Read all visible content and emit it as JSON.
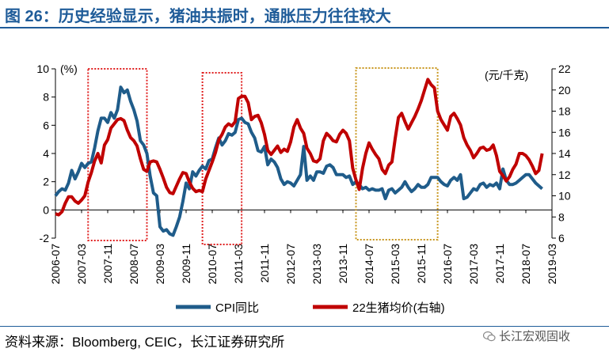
{
  "title": "图 26：历史经验显示，猪油共振时，通胀压力往往较大",
  "source": "资料来源：Bloomberg, CEIC，长江证券研究所",
  "watermark": "长江宏观固收",
  "chart_data": {
    "type": "line",
    "title": "",
    "left_axis": {
      "label": "(%)",
      "min": -2,
      "max": 10,
      "ticks": [
        -2,
        0,
        2,
        4,
        6,
        8,
        10
      ]
    },
    "right_axis": {
      "label": "(元/千克)",
      "min": 6,
      "max": 22,
      "ticks": [
        6,
        8,
        10,
        12,
        14,
        16,
        18,
        20,
        22
      ]
    },
    "x_tick_labels": [
      "2006-07",
      "2007-03",
      "2007-11",
      "2008-07",
      "2009-03",
      "2009-11",
      "2010-07",
      "2011-03",
      "2011-11",
      "2012-07",
      "2013-03",
      "2013-11",
      "2014-07",
      "2015-03",
      "2015-11",
      "2016-07",
      "2017-03",
      "2017-11",
      "2018-07",
      "2019-03"
    ],
    "x_start_label": "2006-07",
    "x_end_label": "2019-03",
    "colors": {
      "cpi": "#1f5c8a",
      "pork": "#c00000",
      "box_red": "#e02020",
      "box_gold": "#c8961e",
      "title": "#1f5c99"
    },
    "series": [
      {
        "name": "CPI同比",
        "axis": "left",
        "points": [
          [
            0,
            1.0
          ],
          [
            1,
            1.3
          ],
          [
            2,
            1.5
          ],
          [
            3,
            1.4
          ],
          [
            4,
            1.9
          ],
          [
            5,
            2.8
          ],
          [
            6,
            2.2
          ],
          [
            7,
            2.7
          ],
          [
            8,
            3.3
          ],
          [
            9,
            3.0
          ],
          [
            10,
            3.3
          ],
          [
            11,
            3.4
          ],
          [
            12,
            4.4
          ],
          [
            13,
            5.6
          ],
          [
            14,
            6.5
          ],
          [
            15,
            6.5
          ],
          [
            16,
            6.2
          ],
          [
            17,
            6.9
          ],
          [
            18,
            6.5
          ],
          [
            19,
            7.1
          ],
          [
            20,
            8.7
          ],
          [
            21,
            8.3
          ],
          [
            22,
            8.5
          ],
          [
            23,
            7.7
          ],
          [
            24,
            7.1
          ],
          [
            25,
            6.3
          ],
          [
            26,
            4.9
          ],
          [
            27,
            4.6
          ],
          [
            28,
            4.0
          ],
          [
            29,
            2.4
          ],
          [
            30,
            1.2
          ],
          [
            31,
            1.0
          ],
          [
            32,
            -1.2
          ],
          [
            33,
            -1.5
          ],
          [
            34,
            -1.4
          ],
          [
            35,
            -1.7
          ],
          [
            36,
            -1.8
          ],
          [
            37,
            -1.2
          ],
          [
            38,
            -0.5
          ],
          [
            39,
            0.6
          ],
          [
            40,
            1.9
          ],
          [
            41,
            1.5
          ],
          [
            42,
            2.7
          ],
          [
            43,
            2.4
          ],
          [
            44,
            2.8
          ],
          [
            45,
            3.1
          ],
          [
            46,
            2.9
          ],
          [
            47,
            3.5
          ],
          [
            48,
            3.6
          ],
          [
            49,
            4.4
          ],
          [
            50,
            5.1
          ],
          [
            51,
            4.6
          ],
          [
            52,
            4.9
          ],
          [
            53,
            5.4
          ],
          [
            54,
            5.3
          ],
          [
            55,
            5.5
          ],
          [
            56,
            6.4
          ],
          [
            57,
            6.5
          ],
          [
            58,
            6.2
          ],
          [
            59,
            6.1
          ],
          [
            60,
            5.5
          ],
          [
            61,
            5.1
          ],
          [
            62,
            4.2
          ],
          [
            63,
            4.1
          ],
          [
            64,
            4.5
          ],
          [
            65,
            3.2
          ],
          [
            66,
            3.6
          ],
          [
            67,
            3.4
          ],
          [
            68,
            3.0
          ],
          [
            69,
            2.2
          ],
          [
            70,
            1.8
          ],
          [
            71,
            2.0
          ],
          [
            72,
            1.9
          ],
          [
            73,
            1.7
          ],
          [
            74,
            2.1
          ],
          [
            75,
            2.5
          ],
          [
            76,
            4.5
          ],
          [
            77,
            2.1
          ],
          [
            78,
            2.4
          ],
          [
            79,
            2.1
          ],
          [
            80,
            2.7
          ],
          [
            81,
            2.7
          ],
          [
            82,
            2.6
          ],
          [
            83,
            3.1
          ],
          [
            84,
            3.2
          ],
          [
            85,
            3.0
          ],
          [
            86,
            2.5
          ],
          [
            87,
            2.5
          ],
          [
            88,
            2.5
          ],
          [
            89,
            2.3
          ],
          [
            90,
            2.4
          ],
          [
            91,
            1.8
          ],
          [
            92,
            2.0
          ],
          [
            93,
            1.8
          ],
          [
            94,
            1.5
          ],
          [
            95,
            1.6
          ],
          [
            96,
            1.4
          ],
          [
            97,
            1.5
          ],
          [
            98,
            1.4
          ],
          [
            99,
            1.4
          ],
          [
            100,
            1.5
          ],
          [
            101,
            0.8
          ],
          [
            102,
            1.4
          ],
          [
            103,
            1.5
          ],
          [
            104,
            1.2
          ],
          [
            105,
            1.4
          ],
          [
            106,
            1.6
          ],
          [
            107,
            2.0
          ],
          [
            108,
            1.6
          ],
          [
            109,
            1.3
          ],
          [
            110,
            1.5
          ],
          [
            111,
            1.8
          ],
          [
            112,
            1.6
          ],
          [
            113,
            1.6
          ],
          [
            114,
            1.8
          ],
          [
            115,
            2.3
          ],
          [
            116,
            2.3
          ],
          [
            117,
            2.3
          ],
          [
            118,
            2.0
          ],
          [
            119,
            1.8
          ],
          [
            120,
            1.7
          ],
          [
            121,
            2.1
          ],
          [
            122,
            2.3
          ],
          [
            123,
            2.1
          ],
          [
            124,
            2.5
          ],
          [
            125,
            0.8
          ],
          [
            126,
            0.9
          ],
          [
            127,
            1.2
          ],
          [
            128,
            1.5
          ],
          [
            129,
            1.4
          ],
          [
            130,
            1.8
          ],
          [
            131,
            1.9
          ],
          [
            132,
            1.6
          ],
          [
            133,
            1.8
          ],
          [
            134,
            1.7
          ],
          [
            135,
            1.9
          ],
          [
            136,
            1.5
          ],
          [
            137,
            2.9
          ],
          [
            138,
            2.1
          ],
          [
            139,
            1.8
          ],
          [
            140,
            1.8
          ],
          [
            141,
            1.9
          ],
          [
            142,
            2.1
          ],
          [
            143,
            2.3
          ],
          [
            144,
            2.5
          ],
          [
            145,
            2.5
          ],
          [
            146,
            2.2
          ],
          [
            147,
            1.9
          ],
          [
            148,
            1.7
          ],
          [
            149,
            1.5
          ]
        ]
      },
      {
        "name": "22生猪均价(右轴)",
        "axis": "right",
        "points": [
          [
            0,
            8.3
          ],
          [
            1,
            8.2
          ],
          [
            2,
            8.5
          ],
          [
            3,
            9.3
          ],
          [
            4,
            9.9
          ],
          [
            5,
            9.9
          ],
          [
            6,
            9.5
          ],
          [
            7,
            9.3
          ],
          [
            8,
            9.6
          ],
          [
            9,
            10.0
          ],
          [
            10,
            11.3
          ],
          [
            11,
            12.2
          ],
          [
            12,
            13.3
          ],
          [
            13,
            14.0
          ],
          [
            14,
            13.1
          ],
          [
            15,
            14.8
          ],
          [
            16,
            15.3
          ],
          [
            17,
            16.4
          ],
          [
            18,
            16.8
          ],
          [
            19,
            17.2
          ],
          [
            20,
            17.3
          ],
          [
            21,
            17.1
          ],
          [
            22,
            16.2
          ],
          [
            23,
            15.5
          ],
          [
            24,
            15.2
          ],
          [
            25,
            14.7
          ],
          [
            26,
            13.5
          ],
          [
            27,
            12.5
          ],
          [
            28,
            12.3
          ],
          [
            29,
            13.2
          ],
          [
            30,
            13.3
          ],
          [
            31,
            13.2
          ],
          [
            32,
            12.5
          ],
          [
            33,
            11.7
          ],
          [
            34,
            10.8
          ],
          [
            35,
            10.3
          ],
          [
            36,
            10.2
          ],
          [
            37,
            10.9
          ],
          [
            38,
            11.6
          ],
          [
            39,
            12.2
          ],
          [
            40,
            12.1
          ],
          [
            41,
            11.3
          ],
          [
            42,
            10.7
          ],
          [
            43,
            10.4
          ],
          [
            44,
            10.5
          ],
          [
            45,
            10.4
          ],
          [
            46,
            11.6
          ],
          [
            47,
            12.4
          ],
          [
            48,
            13.2
          ],
          [
            49,
            14.1
          ],
          [
            50,
            15.3
          ],
          [
            51,
            15.8
          ],
          [
            52,
            16.5
          ],
          [
            53,
            16.8
          ],
          [
            54,
            16.6
          ],
          [
            55,
            17.0
          ],
          [
            56,
            19.2
          ],
          [
            57,
            19.4
          ],
          [
            58,
            19.4
          ],
          [
            59,
            18.8
          ],
          [
            60,
            17.2
          ],
          [
            61,
            17.5
          ],
          [
            62,
            17.6
          ],
          [
            63,
            16.9
          ],
          [
            64,
            15.8
          ],
          [
            65,
            14.3
          ],
          [
            66,
            13.9
          ],
          [
            67,
            14.3
          ],
          [
            68,
            14.7
          ],
          [
            69,
            14.1
          ],
          [
            70,
            14.4
          ],
          [
            71,
            14.2
          ],
          [
            72,
            15.1
          ],
          [
            73,
            16.5
          ],
          [
            74,
            17.2
          ],
          [
            75,
            16.4
          ],
          [
            76,
            15.9
          ],
          [
            77,
            14.5
          ],
          [
            78,
            14.0
          ],
          [
            79,
            13.3
          ],
          [
            80,
            13.2
          ],
          [
            81,
            13.5
          ],
          [
            82,
            15.2
          ],
          [
            83,
            15.9
          ],
          [
            84,
            15.6
          ],
          [
            85,
            15.2
          ],
          [
            86,
            15.1
          ],
          [
            87,
            15.8
          ],
          [
            88,
            16.2
          ],
          [
            89,
            15.9
          ],
          [
            90,
            15.2
          ],
          [
            91,
            12.6
          ],
          [
            92,
            11.5
          ],
          [
            93,
            10.6
          ],
          [
            94,
            12.6
          ],
          [
            95,
            14.0
          ],
          [
            96,
            15.0
          ],
          [
            97,
            14.4
          ],
          [
            98,
            13.9
          ],
          [
            99,
            13.5
          ],
          [
            100,
            12.5
          ],
          [
            101,
            12.1
          ],
          [
            102,
            12.9
          ],
          [
            103,
            13.2
          ],
          [
            104,
            15.4
          ],
          [
            105,
            17.4
          ],
          [
            106,
            17.8
          ],
          [
            107,
            17.0
          ],
          [
            108,
            16.3
          ],
          [
            109,
            16.9
          ],
          [
            110,
            17.5
          ],
          [
            111,
            18.2
          ],
          [
            112,
            19.0
          ],
          [
            113,
            20.0
          ],
          [
            114,
            21.0
          ],
          [
            115,
            20.5
          ],
          [
            116,
            20.2
          ],
          [
            117,
            18.0
          ],
          [
            118,
            17.2
          ],
          [
            119,
            16.7
          ],
          [
            120,
            16.2
          ],
          [
            121,
            17.5
          ],
          [
            122,
            17.8
          ],
          [
            123,
            17.3
          ],
          [
            124,
            16.7
          ],
          [
            125,
            15.5
          ],
          [
            126,
            14.8
          ],
          [
            127,
            14.3
          ],
          [
            128,
            13.6
          ],
          [
            129,
            14.0
          ],
          [
            130,
            14.5
          ],
          [
            131,
            14.6
          ],
          [
            132,
            14.3
          ],
          [
            133,
            14.4
          ],
          [
            134,
            14.8
          ],
          [
            135,
            13.8
          ],
          [
            136,
            12.3
          ],
          [
            137,
            11.9
          ],
          [
            138,
            11.4
          ],
          [
            139,
            11.8
          ],
          [
            140,
            12.5
          ],
          [
            141,
            13.0
          ],
          [
            142,
            14.0
          ],
          [
            143,
            14.0
          ],
          [
            144,
            13.8
          ],
          [
            145,
            13.4
          ],
          [
            146,
            12.8
          ],
          [
            147,
            12.1
          ],
          [
            148,
            12.4
          ],
          [
            149,
            14.0
          ]
        ]
      }
    ],
    "highlight_boxes": [
      {
        "name": "box-2007",
        "from": 10,
        "to": 28,
        "style": "red"
      },
      {
        "name": "box-2010",
        "from": 45,
        "to": 57,
        "style": "red"
      },
      {
        "name": "box-2014",
        "from": 92,
        "to": 117,
        "style": "gold"
      }
    ]
  }
}
